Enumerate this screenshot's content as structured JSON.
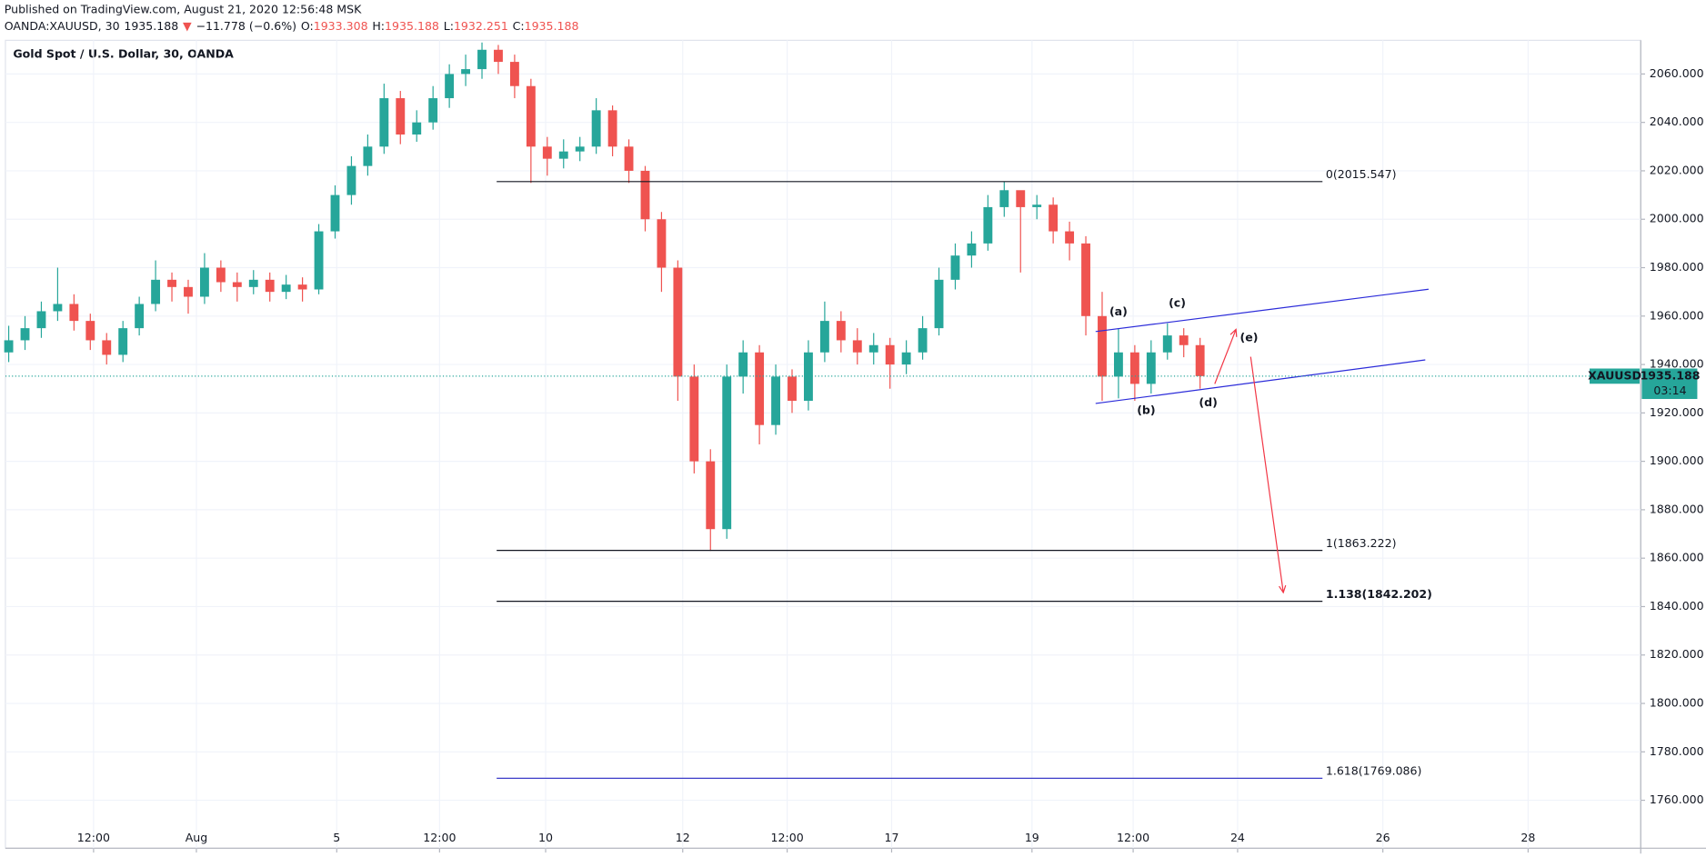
{
  "header": {
    "published": "Published on TradingView.com, August 21, 2020 12:56:48 MSK",
    "quote": [
      {
        "text": "OANDA:XAUUSD, 30",
        "color": "#131722"
      },
      {
        "text": "1935.188",
        "color": "#131722"
      },
      {
        "text": "▼",
        "color": "#ef5350"
      },
      {
        "text": "−11.778 (−0.6%)",
        "color": "#131722"
      },
      {
        "text": "O:",
        "color": "#131722"
      },
      {
        "text": "1933.308",
        "color": "#ef5350"
      },
      {
        "text": "H:",
        "color": "#131722"
      },
      {
        "text": "1935.188",
        "color": "#ef5350"
      },
      {
        "text": "L:",
        "color": "#131722"
      },
      {
        "text": "1932.251",
        "color": "#ef5350"
      },
      {
        "text": "C:",
        "color": "#131722"
      },
      {
        "text": "1935.188",
        "color": "#ef5350"
      }
    ]
  },
  "chart_data": {
    "type": "candlestick",
    "title": "Gold Spot / U.S. Dollar, 30, OANDA",
    "x": [
      0,
      1,
      2,
      3,
      4,
      5,
      6,
      7,
      8,
      9,
      10,
      11,
      12,
      13,
      14,
      15,
      16,
      17,
      18,
      19,
      20,
      21,
      22,
      23,
      24,
      25,
      26,
      27,
      28,
      29,
      30,
      31,
      32,
      33,
      34,
      35,
      36,
      37,
      38,
      39,
      40,
      41,
      42,
      43,
      44,
      45,
      46,
      47,
      48,
      49,
      50,
      51,
      52,
      53,
      54,
      55,
      56,
      57,
      58,
      59,
      60,
      61,
      62,
      63,
      64,
      65,
      66,
      67,
      68,
      69,
      70,
      71,
      72,
      73
    ],
    "open": [
      1945,
      1950,
      1955,
      1962,
      1965,
      1958,
      1950,
      1944,
      1955,
      1965,
      1975,
      1972,
      1968,
      1980,
      1974,
      1972,
      1975,
      1970,
      1973,
      1971,
      1995,
      2010,
      2022,
      2030,
      2050,
      2035,
      2040,
      2050,
      2060,
      2062,
      2070,
      2065,
      2055,
      2030,
      2025,
      2028,
      2030,
      2045,
      2030,
      2020,
      2000,
      1980,
      1935,
      1900,
      1872,
      1935,
      1945,
      1915,
      1935,
      1925,
      1945,
      1958,
      1950,
      1945,
      1948,
      1940,
      1945,
      1955,
      1975,
      1985,
      1990,
      2005,
      2012,
      2005,
      2006,
      1995,
      1990,
      1960,
      1935,
      1945,
      1932,
      1945,
      1952,
      1948
    ],
    "high": [
      1956,
      1960,
      1966,
      1980,
      1969,
      1961,
      1953,
      1958,
      1968,
      1983,
      1978,
      1975,
      1986,
      1983,
      1978,
      1979,
      1978,
      1977,
      1976,
      1998,
      2014,
      2026,
      2035,
      2056,
      2053,
      2045,
      2055,
      2064,
      2068,
      2073,
      2072,
      2068,
      2058,
      2034,
      2033,
      2034,
      2050,
      2047,
      2033,
      2022,
      2003,
      1983,
      1940,
      1905,
      1940,
      1950,
      1948,
      1940,
      1938,
      1950,
      1966,
      1962,
      1955,
      1953,
      1951,
      1950,
      1960,
      1980,
      1990,
      1995,
      2010,
      2015.5,
      2010,
      2010,
      2009,
      1999,
      1993,
      1970,
      1955,
      1948,
      1950,
      1957,
      1955,
      1951
    ],
    "low": [
      1941,
      1946,
      1951,
      1958,
      1954,
      1946,
      1940,
      1941,
      1952,
      1962,
      1966,
      1961,
      1965,
      1970,
      1966,
      1969,
      1966,
      1967,
      1966,
      1969,
      1992,
      2006,
      2018,
      2027,
      2031,
      2032,
      2037,
      2046,
      2055,
      2058,
      2060,
      2050,
      2015,
      2018,
      2021,
      2024,
      2027,
      2026,
      2015,
      1995,
      1970,
      1925,
      1895,
      1863,
      1868,
      1928,
      1907,
      1911,
      1920,
      1921,
      1941,
      1945,
      1940,
      1940,
      1930,
      1936,
      1942,
      1952,
      1971,
      1980,
      1987,
      2001,
      1978,
      2000,
      1990,
      1983,
      1952,
      1925,
      1926,
      1925,
      1928,
      1942,
      1943,
      1930
    ],
    "close": [
      1950,
      1955,
      1962,
      1965,
      1958,
      1950,
      1944,
      1955,
      1965,
      1975,
      1972,
      1968,
      1980,
      1974,
      1972,
      1975,
      1970,
      1973,
      1971,
      1995,
      2010,
      2022,
      2030,
      2050,
      2035,
      2040,
      2050,
      2060,
      2062,
      2070,
      2065,
      2055,
      2030,
      2025,
      2028,
      2030,
      2045,
      2030,
      2020,
      2000,
      1980,
      1935,
      1900,
      1872,
      1935,
      1945,
      1915,
      1935,
      1925,
      1945,
      1958,
      1950,
      1945,
      1948,
      1940,
      1945,
      1955,
      1975,
      1985,
      1990,
      2005,
      2012,
      2005,
      2006,
      1995,
      1990,
      1960,
      1935,
      1945,
      1932,
      1945,
      1952,
      1948,
      1935.188
    ],
    "up_color": "#26a69a",
    "down_color": "#ef5350",
    "xlim": [
      -0.2,
      100
    ],
    "ylim": [
      1740.2,
      2073.9
    ],
    "xticks": [
      {
        "value": 5.2,
        "label": "12:00"
      },
      {
        "value": 11.5,
        "label": "Aug"
      },
      {
        "value": 20.1,
        "label": "5"
      },
      {
        "value": 26.4,
        "label": "12:00"
      },
      {
        "value": 32.9,
        "label": "10"
      },
      {
        "value": 41.3,
        "label": "12"
      },
      {
        "value": 47.7,
        "label": "12:00"
      },
      {
        "value": 54.1,
        "label": "17"
      },
      {
        "value": 62.7,
        "label": "19"
      },
      {
        "value": 68.9,
        "label": "12:00"
      },
      {
        "value": 75.3,
        "label": "24"
      },
      {
        "value": 84.2,
        "label": "26"
      },
      {
        "value": 93.1,
        "label": "28"
      }
    ],
    "yticks": [
      {
        "value": 1760,
        "label": "1760.000"
      },
      {
        "value": 1780,
        "label": "1780.000"
      },
      {
        "value": 1800,
        "label": "1800.000"
      },
      {
        "value": 1820,
        "label": "1820.000"
      },
      {
        "value": 1840,
        "label": "1840.000"
      },
      {
        "value": 1860,
        "label": "1860.000"
      },
      {
        "value": 1880,
        "label": "1880.000"
      },
      {
        "value": 1900,
        "label": "1900.000"
      },
      {
        "value": 1920,
        "label": "1920.000"
      },
      {
        "value": 1940,
        "label": "1940.000"
      },
      {
        "value": 1960,
        "label": "1960.000"
      },
      {
        "value": 1980,
        "label": "1980.000"
      },
      {
        "value": 2000,
        "label": "2000.000"
      },
      {
        "value": 2020,
        "label": "2020.000"
      },
      {
        "value": 2040,
        "label": "2040.000"
      },
      {
        "value": 2060,
        "label": "2060.000"
      }
    ],
    "grid": true,
    "levels": [
      {
        "value": 2015.547,
        "label": "0(2015.547)",
        "color": "#131722",
        "bold": false,
        "x": [
          29.9,
          80.5
        ]
      },
      {
        "value": 1863.222,
        "label": "1(1863.222)",
        "color": "#131722",
        "bold": false,
        "x": [
          29.9,
          80.5
        ]
      },
      {
        "value": 1842.202,
        "label": "1.138(1842.202)",
        "color": "#131722",
        "bold": true,
        "x": [
          29.9,
          80.5
        ]
      },
      {
        "value": 1769.086,
        "label": "1.618(1769.086)",
        "color": "#3c3cc8",
        "bold": false,
        "x": [
          29.9,
          80.5
        ]
      }
    ],
    "trendlines": [
      {
        "color": "#2b2bd9",
        "x": [
          66.6,
          87
        ],
        "y": [
          1953.6,
          1971.1
        ]
      },
      {
        "color": "#2b2bd9",
        "x": [
          66.6,
          86.8
        ],
        "y": [
          1923.9,
          1941.9
        ]
      }
    ],
    "arrows": [
      {
        "color": "#f23645",
        "x": [
          73.9,
          75.2
        ],
        "y": [
          1932,
          1954.5
        ]
      },
      {
        "color": "#f23645",
        "x": [
          76.1,
          78.1
        ],
        "y": [
          1943.2,
          1845.8
        ]
      }
    ],
    "wave_labels": [
      {
        "text": "(a)",
        "x": 68,
        "y": 1961.6
      },
      {
        "text": "(b)",
        "x": 69.7,
        "y": 1920.8
      },
      {
        "text": "(c)",
        "x": 71.6,
        "y": 1965.2
      },
      {
        "text": "(d)",
        "x": 73.5,
        "y": 1924
      },
      {
        "text": "(e)",
        "x": 76,
        "y": 1950.9
      }
    ],
    "wave_color": "#2b2bd9",
    "last_price": {
      "symbol": "XAUUSD",
      "value": 1935.188,
      "countdown": "03:14",
      "color": "#26a69a"
    }
  }
}
